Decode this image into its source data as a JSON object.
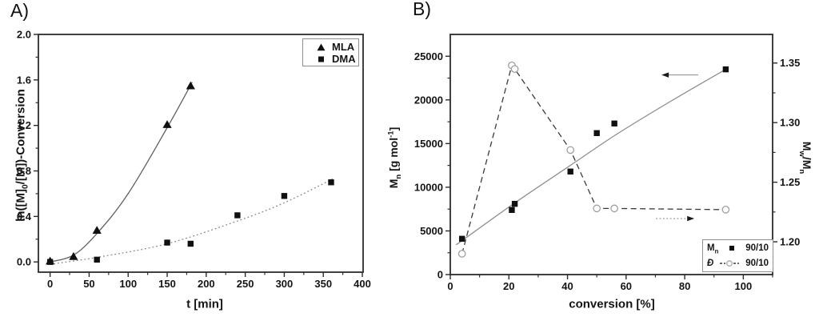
{
  "chart_data": [
    {
      "id": "A",
      "type": "scatter",
      "title": "A)",
      "xlabel": "t [min]",
      "ylabel": "ln([M]_{0}/[M])-Conversion",
      "xlim": [
        -15,
        401
      ],
      "ylim": [
        -0.09,
        2.0
      ],
      "grid": false,
      "xticks": [
        {
          "v": 0,
          "label": "0"
        },
        {
          "v": 50,
          "label": "50"
        },
        {
          "v": 100,
          "label": "100"
        },
        {
          "v": 150,
          "label": "150"
        },
        {
          "v": 200,
          "label": "200"
        },
        {
          "v": 250,
          "label": "250"
        },
        {
          "v": 300,
          "label": "300"
        },
        {
          "v": 350,
          "label": "350"
        },
        {
          "v": 400,
          "label": "400"
        }
      ],
      "xminor": [
        25,
        75,
        125,
        175,
        225,
        275,
        325,
        375
      ],
      "yticks": [
        {
          "v": 0.0,
          "label": "0.0"
        },
        {
          "v": 0.4,
          "label": "0.4"
        },
        {
          "v": 0.8,
          "label": "0.8"
        },
        {
          "v": 1.2,
          "label": "1.2"
        },
        {
          "v": 1.6,
          "label": "1.6"
        },
        {
          "v": 2.0,
          "label": "2.0"
        }
      ],
      "yminor": [
        0.2,
        0.6,
        1.0,
        1.4,
        1.8
      ],
      "legend": {
        "position": "top-right",
        "items": [
          {
            "marker": "triangle-filled",
            "label": "MLA"
          },
          {
            "marker": "square-filled",
            "label": "DMA"
          }
        ]
      },
      "series": [
        {
          "name": "MLA",
          "marker": "triangle",
          "line": "solid",
          "color": "#606060",
          "marker_color": "#101010",
          "points": [
            [
              0,
              0.01
            ],
            [
              30,
              0.05
            ],
            [
              60,
              0.28
            ],
            [
              150,
              1.21
            ],
            [
              180,
              1.55
            ]
          ],
          "fit": [
            [
              0,
              0.0
            ],
            [
              30,
              0.06
            ],
            [
              60,
              0.25
            ],
            [
              100,
              0.6
            ],
            [
              150,
              1.18
            ],
            [
              182,
              1.58
            ]
          ]
        },
        {
          "name": "DMA",
          "marker": "square",
          "line": "dotted",
          "color": "#888888",
          "marker_color": "#101010",
          "points": [
            [
              0,
              0.0
            ],
            [
              60,
              0.02
            ],
            [
              150,
              0.17
            ],
            [
              180,
              0.16
            ],
            [
              240,
              0.41
            ],
            [
              300,
              0.58
            ],
            [
              360,
              0.7
            ]
          ],
          "fit": [
            [
              0,
              -0.02
            ],
            [
              60,
              0.04
            ],
            [
              150,
              0.16
            ],
            [
              240,
              0.36
            ],
            [
              300,
              0.52
            ],
            [
              362,
              0.73
            ]
          ]
        }
      ]
    },
    {
      "id": "B",
      "type": "scatter",
      "title": "B)",
      "xlabel": "conversion [%]",
      "ylabel_left": "M_{n} [g mol^{-1}]",
      "ylabel_right": "M_{w}/M_{n}",
      "xlim": [
        0,
        110
      ],
      "ylim_left": [
        0,
        27500
      ],
      "ylim_right": [
        1.1725,
        1.374
      ],
      "grid": false,
      "xticks": [
        {
          "v": 0,
          "label": "0"
        },
        {
          "v": 20,
          "label": "20"
        },
        {
          "v": 40,
          "label": "40"
        },
        {
          "v": 60,
          "label": "60"
        },
        {
          "v": 80,
          "label": "80"
        },
        {
          "v": 100,
          "label": "100"
        }
      ],
      "xminor": [
        10,
        30,
        50,
        70,
        90,
        110
      ],
      "yticks_left": [
        {
          "v": 0,
          "label": "0"
        },
        {
          "v": 5000,
          "label": "5000"
        },
        {
          "v": 10000,
          "label": "10000"
        },
        {
          "v": 15000,
          "label": "15000"
        },
        {
          "v": 20000,
          "label": "20000"
        },
        {
          "v": 25000,
          "label": "25000"
        }
      ],
      "yminor_left": [
        2500,
        7500,
        12500,
        17500,
        22500
      ],
      "yticks_right": [
        {
          "v": 1.2,
          "label": "1.20"
        },
        {
          "v": 1.25,
          "label": "1.25"
        },
        {
          "v": 1.3,
          "label": "1.30"
        },
        {
          "v": 1.35,
          "label": "1.35"
        }
      ],
      "yminor_right": [
        1.225,
        1.275,
        1.325
      ],
      "legend": {
        "position": "bottom-right",
        "items": [
          {
            "name": "M_{n}",
            "marker": "square-filled",
            "label": "90/10"
          },
          {
            "name": "Đ",
            "marker": "circle-dashed",
            "label": "90/10"
          }
        ]
      },
      "series": [
        {
          "name": "Mn 90/10",
          "axis": "left",
          "marker": "square",
          "line": "fit-solid",
          "color": "#8f8f8f",
          "marker_color": "#101010",
          "points": [
            [
              4,
              4100
            ],
            [
              21,
              7400
            ],
            [
              22,
              8100
            ],
            [
              41,
              11800
            ],
            [
              50,
              16200
            ],
            [
              56,
              17300
            ],
            [
              94,
              23500
            ]
          ],
          "fit": [
            [
              2,
              3400
            ],
            [
              22,
              8200
            ],
            [
              41,
              12500
            ],
            [
              56,
              15900
            ],
            [
              75,
              19800
            ],
            [
              94,
              23500
            ]
          ]
        },
        {
          "name": "Đ 90/10",
          "axis": "right",
          "marker": "circle-open",
          "line": "dashed",
          "color": "#3a3a3a",
          "marker_color": "#9f9f9f",
          "points": [
            [
              4,
              1.19
            ],
            [
              21,
              1.348
            ],
            [
              22,
              1.345
            ],
            [
              41,
              1.277
            ],
            [
              50,
              1.228
            ],
            [
              56,
              1.228
            ],
            [
              94,
              1.227
            ]
          ]
        }
      ],
      "arrows": [
        {
          "name": "left-axis-arrow",
          "style": "solid",
          "dir": "left",
          "axis": "right",
          "y": 1.34,
          "x_tail": 84.6,
          "x_head": 72.1
        },
        {
          "name": "right-axis-arrow",
          "style": "dotted",
          "dir": "right",
          "axis": "right",
          "y": 1.2195,
          "x_tail": 70.2,
          "x_head": 83.3
        }
      ]
    }
  ]
}
